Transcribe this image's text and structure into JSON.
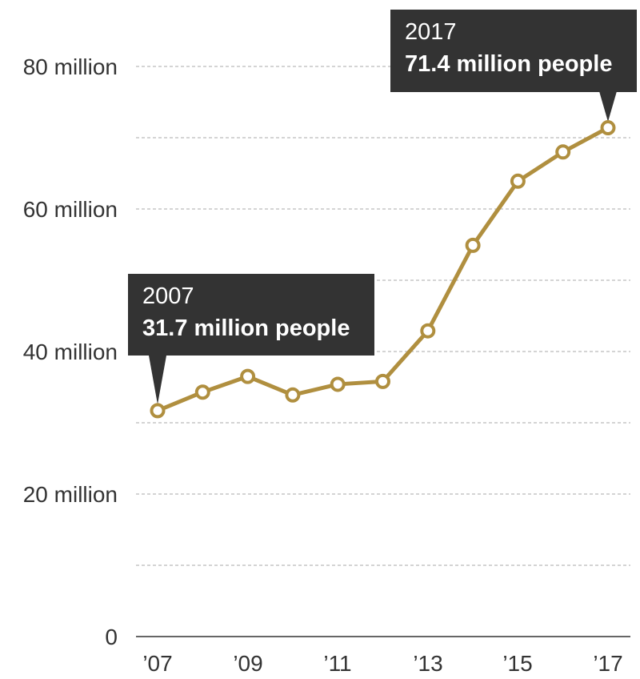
{
  "chart_data": {
    "type": "line",
    "title": "",
    "xlabel": "",
    "ylabel": "",
    "x": [
      2007,
      2008,
      2009,
      2010,
      2011,
      2012,
      2013,
      2014,
      2015,
      2016,
      2017
    ],
    "series": [
      {
        "name": "People",
        "values": [
          31.7,
          34.3,
          36.5,
          33.9,
          35.4,
          35.8,
          42.9,
          54.9,
          63.9,
          68.0,
          71.4
        ]
      }
    ],
    "ylim": [
      0,
      80
    ],
    "yticks": [
      0,
      10,
      20,
      30,
      40,
      50,
      60,
      70,
      80
    ],
    "ytick_labels": [
      "0",
      "20 million",
      "40 million",
      "60 million",
      "80 million"
    ],
    "xtick_labels": [
      "’07",
      "’09",
      "’11",
      "’13",
      "’15",
      "’17"
    ],
    "grid": true,
    "line_color": "#b08f3f",
    "annotations": [
      {
        "year": "2007",
        "text": "31.7 million people"
      },
      {
        "year": "2017",
        "text": "71.4 million people"
      }
    ]
  },
  "axis": {
    "y": [
      "0",
      "20 million",
      "40 million",
      "60 million",
      "80 million"
    ],
    "x": [
      "’07",
      "’09",
      "’11",
      "’13",
      "’15",
      "’17"
    ]
  },
  "callouts": {
    "first": {
      "year": "2007",
      "value": "31.7 million people"
    },
    "last": {
      "year": "2017",
      "value": "71.4 million people"
    }
  }
}
